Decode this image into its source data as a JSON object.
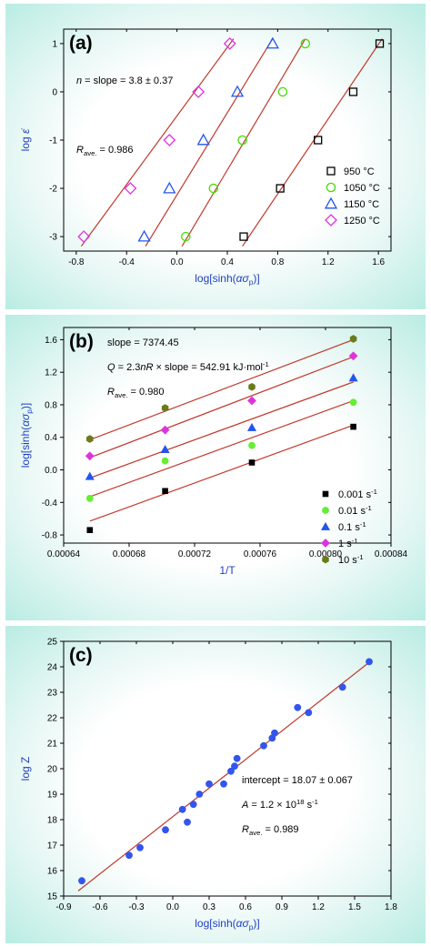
{
  "chart_data": [
    {
      "type": "scatter",
      "panel_label": "(a)",
      "title": "",
      "xlabel": "log[sinh(ασp)]",
      "ylabel": "log ε̇",
      "xlim": [
        -0.9,
        1.7
      ],
      "ylim": [
        -3.3,
        1.3
      ],
      "xticks": [
        -0.8,
        -0.4,
        0.0,
        0.4,
        0.8,
        1.2,
        1.6
      ],
      "xtick_labels": [
        "-0.8",
        "-0.4",
        "0.0",
        "0.4",
        "0.8",
        "1.2",
        "1.6"
      ],
      "yticks": [
        -3,
        -2,
        -1,
        0,
        1
      ],
      "ytick_labels": [
        "-3",
        "-2",
        "-1",
        "0",
        "1"
      ],
      "annotations": [
        "n = slope = 3.8 ± 0.37",
        "Rave. = 0.986"
      ],
      "legend_position": "bottom-right",
      "series": [
        {
          "name": "950 °C",
          "marker": "square",
          "color": "#000000",
          "x": [
            0.53,
            0.82,
            1.12,
            1.4,
            1.61
          ],
          "y": [
            -3,
            -2,
            -1,
            0,
            1
          ],
          "fit": [
            [
              0.52,
              -3.2
            ],
            [
              1.63,
              1.1
            ]
          ]
        },
        {
          "name": "1050 °C",
          "marker": "circle",
          "color": "#44dd00",
          "x": [
            0.07,
            0.29,
            0.52,
            0.84,
            1.02
          ],
          "y": [
            -3,
            -2,
            -1,
            0,
            1
          ],
          "fit": [
            [
              0.04,
              -3.2
            ],
            [
              1.02,
              1.1
            ]
          ]
        },
        {
          "name": "1150 °C",
          "marker": "triangle",
          "color": "#2255ee",
          "x": [
            -0.26,
            -0.06,
            0.21,
            0.48,
            0.76
          ],
          "y": [
            -3,
            -2,
            -1,
            0,
            1
          ],
          "fit": [
            [
              -0.25,
              -3.2
            ],
            [
              0.76,
              1.1
            ]
          ]
        },
        {
          "name": "1250 °C",
          "marker": "diamond",
          "color": "#dd33dd",
          "x": [
            -0.74,
            -0.37,
            -0.06,
            0.17,
            0.42
          ],
          "y": [
            -3,
            -2,
            -1,
            0,
            1
          ],
          "fit": [
            [
              -0.76,
              -3.2
            ],
            [
              0.45,
              1.1
            ]
          ]
        }
      ]
    },
    {
      "type": "scatter",
      "panel_label": "(b)",
      "title": "",
      "xlabel": "1/T",
      "ylabel": "log[sinh(ασp)]",
      "xlim": [
        0.00064,
        0.00084
      ],
      "ylim": [
        -0.9,
        1.75
      ],
      "xticks": [
        0.00064,
        0.00068,
        0.00072,
        0.00076,
        0.0008,
        0.00084
      ],
      "xtick_labels": [
        "0.00064",
        "0.00068",
        "0.00072",
        "0.00076",
        "0.00080",
        "0.00084"
      ],
      "yticks": [
        -0.8,
        -0.4,
        0.0,
        0.4,
        0.8,
        1.2,
        1.6
      ],
      "ytick_labels": [
        "-0.8",
        "-0.4",
        "0.0",
        "0.4",
        "0.8",
        "1.2",
        "1.6"
      ],
      "annotations": [
        "slope = 7374.45",
        "Q = 2.3nR × slope = 542.91 kJ·mol-1",
        "Rave. = 0.980"
      ],
      "legend_position": "bottom-right",
      "series": [
        {
          "name": "0.001 s-1",
          "marker": "square-filled",
          "color": "#000000",
          "x": [
            0.000656,
            0.000702,
            0.000755,
            0.000817
          ],
          "y": [
            -0.74,
            -0.26,
            0.09,
            0.53
          ],
          "fit": [
            [
              0.000656,
              -0.63
            ],
            [
              0.000817,
              0.55
            ]
          ]
        },
        {
          "name": "0.01 s-1",
          "marker": "circle-filled",
          "color": "#66ee33",
          "x": [
            0.000656,
            0.000702,
            0.000755,
            0.000817
          ],
          "y": [
            -0.35,
            0.11,
            0.3,
            0.83
          ],
          "fit": [
            [
              0.000656,
              -0.33
            ],
            [
              0.000817,
              0.85
            ]
          ]
        },
        {
          "name": "0.1 s-1",
          "marker": "triangle-filled",
          "color": "#2255ee",
          "x": [
            0.000656,
            0.000702,
            0.000755,
            0.000817
          ],
          "y": [
            -0.08,
            0.25,
            0.52,
            1.13
          ],
          "fit": [
            [
              0.000656,
              -0.1
            ],
            [
              0.000817,
              1.08
            ]
          ]
        },
        {
          "name": "1 s-1",
          "marker": "diamond-filled",
          "color": "#dd33dd",
          "x": [
            0.000656,
            0.000702,
            0.000755,
            0.000817
          ],
          "y": [
            0.17,
            0.49,
            0.85,
            1.4
          ],
          "fit": [
            [
              0.000656,
              0.15
            ],
            [
              0.000817,
              1.39
            ]
          ]
        },
        {
          "name": "10 s-1",
          "marker": "hexagon-filled",
          "color": "#6b7a1a",
          "x": [
            0.000656,
            0.000702,
            0.000755,
            0.000817
          ],
          "y": [
            0.38,
            0.76,
            1.02,
            1.61
          ],
          "fit": [
            [
              0.000656,
              0.37
            ],
            [
              0.000817,
              1.6
            ]
          ]
        }
      ]
    },
    {
      "type": "scatter",
      "panel_label": "(c)",
      "title": "",
      "xlabel": "log[sinh(ασp)]",
      "ylabel": "log Z",
      "xlim": [
        -0.9,
        1.8
      ],
      "ylim": [
        15,
        25
      ],
      "xticks": [
        -0.9,
        -0.6,
        -0.3,
        0.0,
        0.3,
        0.6,
        0.9,
        1.2,
        1.5,
        1.8
      ],
      "xtick_labels": [
        "-0.9",
        "-0.6",
        "-0.3",
        "0.0",
        "0.3",
        "0.6",
        "0.9",
        "1.2",
        "1.5",
        "1.8"
      ],
      "yticks": [
        15,
        16,
        17,
        18,
        19,
        20,
        21,
        22,
        23,
        24,
        25
      ],
      "ytick_labels": [
        "15",
        "16",
        "17",
        "18",
        "19",
        "20",
        "21",
        "22",
        "23",
        "24",
        "25"
      ],
      "annotations": [
        "intercept = 18.07 ± 0.067",
        "A = 1.2 × 1018 s-1",
        "Rave. = 0.989"
      ],
      "series": [
        {
          "name": "",
          "marker": "circle-filled",
          "color": "#3355ee",
          "x": [
            -0.75,
            -0.36,
            -0.27,
            -0.06,
            0.08,
            0.12,
            0.17,
            0.22,
            0.3,
            0.42,
            0.48,
            0.51,
            0.53,
            0.75,
            0.82,
            0.84,
            1.03,
            1.12,
            1.4,
            1.62
          ],
          "y": [
            15.6,
            16.6,
            16.9,
            17.6,
            18.4,
            17.9,
            18.6,
            19.0,
            19.4,
            19.4,
            19.9,
            20.1,
            20.4,
            20.9,
            21.2,
            21.4,
            22.4,
            22.2,
            23.2,
            24.2
          ],
          "fit": [
            [
              -0.78,
              15.2
            ],
            [
              1.64,
              24.25
            ]
          ]
        }
      ]
    }
  ]
}
